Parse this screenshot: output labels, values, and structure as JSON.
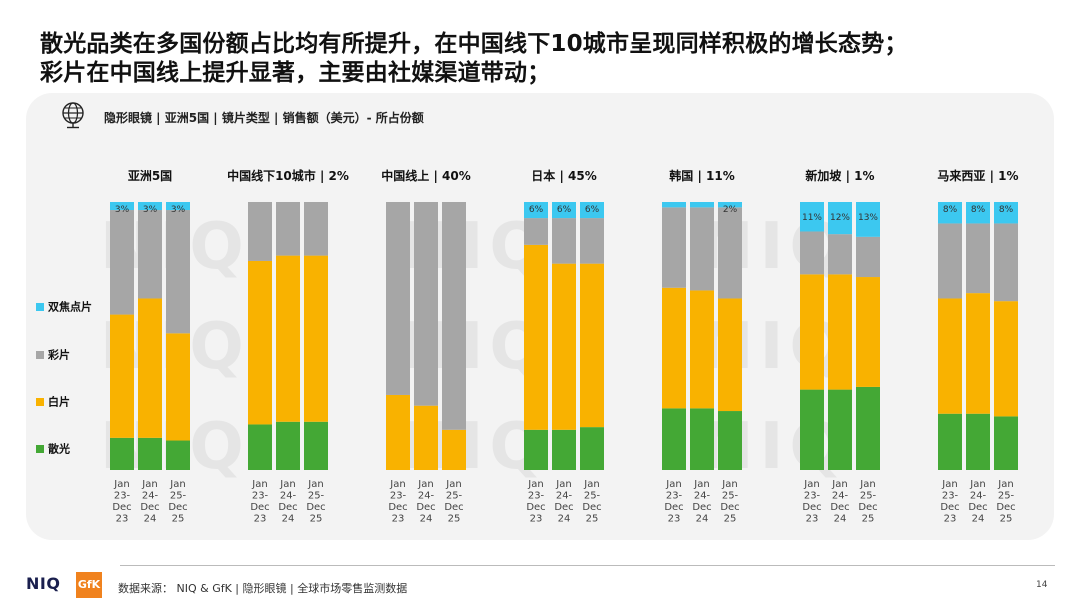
{
  "title_line1": "散光品类在多国份额占比均有所提升，在中国线下10城市呈现同样积极的增长态势；",
  "title_line2": "彩片在中国线上提升显著，主要由社媒渠道带动；",
  "subtitle": "隐形眼镜 | 亚洲5国 | 镜片类型 | 销售额（美元）- 所占份额",
  "icon": "globe-icon",
  "watermark": "NIQ",
  "colors": {
    "toric": "#44a835",
    "clear": "#f9b200",
    "color": "#a6a6a6",
    "bifocal": "#3cc8f0"
  },
  "legend": [
    {
      "key": "bifocal",
      "label": "双焦点片"
    },
    {
      "key": "color",
      "label": "彩片"
    },
    {
      "key": "clear",
      "label": "白片"
    },
    {
      "key": "toric",
      "label": "散光"
    }
  ],
  "chart_data": {
    "type": "bar",
    "stacked": true,
    "normalized": true,
    "periods": [
      [
        "Jan",
        "23-",
        "Dec",
        "23"
      ],
      [
        "Jan",
        "24-",
        "Dec",
        "24"
      ],
      [
        "Jan",
        "25-",
        "Dec",
        "25"
      ]
    ],
    "series_order": [
      "toric",
      "clear",
      "color",
      "bifocal"
    ],
    "groups": [
      {
        "name": "亚洲5国",
        "share": "",
        "bifocal_labels": [
          "3%",
          "3%",
          "3%"
        ],
        "bars": [
          {
            "toric": 12,
            "clear": 46,
            "color": 39,
            "bifocal": 3
          },
          {
            "toric": 12,
            "clear": 52,
            "color": 33,
            "bifocal": 3
          },
          {
            "toric": 11,
            "clear": 40,
            "color": 46,
            "bifocal": 3
          }
        ]
      },
      {
        "name": "中国线下10城市",
        "share": "2%",
        "bifocal_labels": [
          "",
          "",
          ""
        ],
        "bars": [
          {
            "toric": 17,
            "clear": 61,
            "color": 22,
            "bifocal": 0
          },
          {
            "toric": 18,
            "clear": 62,
            "color": 20,
            "bifocal": 0
          },
          {
            "toric": 18,
            "clear": 62,
            "color": 20,
            "bifocal": 0
          }
        ]
      },
      {
        "name": "中国线上",
        "share": "40%",
        "bifocal_labels": [
          "",
          "",
          ""
        ],
        "bars": [
          {
            "toric": 0,
            "clear": 28,
            "color": 72,
            "bifocal": 0
          },
          {
            "toric": 0,
            "clear": 24,
            "color": 76,
            "bifocal": 0
          },
          {
            "toric": 0,
            "clear": 15,
            "color": 85,
            "bifocal": 0
          }
        ]
      },
      {
        "name": "日本",
        "share": "45%",
        "bifocal_labels": [
          "6%",
          "6%",
          "6%"
        ],
        "bars": [
          {
            "toric": 15,
            "clear": 69,
            "color": 10,
            "bifocal": 6
          },
          {
            "toric": 15,
            "clear": 62,
            "color": 17,
            "bifocal": 6
          },
          {
            "toric": 16,
            "clear": 61,
            "color": 17,
            "bifocal": 6
          }
        ]
      },
      {
        "name": "韩国",
        "share": "11%",
        "bifocal_labels": [
          "",
          "",
          "2%"
        ],
        "bars": [
          {
            "toric": 23,
            "clear": 45,
            "color": 30,
            "bifocal": 2
          },
          {
            "toric": 23,
            "clear": 44,
            "color": 31,
            "bifocal": 2
          },
          {
            "toric": 22,
            "clear": 42,
            "color": 34,
            "bifocal": 2
          }
        ]
      },
      {
        "name": "新加坡",
        "share": "1%",
        "bifocal_labels": [
          "11%",
          "12%",
          "13%"
        ],
        "bars": [
          {
            "toric": 30,
            "clear": 43,
            "color": 16,
            "bifocal": 11
          },
          {
            "toric": 30,
            "clear": 43,
            "color": 15,
            "bifocal": 12
          },
          {
            "toric": 31,
            "clear": 41,
            "color": 15,
            "bifocal": 13
          }
        ]
      },
      {
        "name": "马来西亚",
        "share": "1%",
        "bifocal_labels": [
          "8%",
          "8%",
          "8%"
        ],
        "bars": [
          {
            "toric": 21,
            "clear": 43,
            "color": 28,
            "bifocal": 8
          },
          {
            "toric": 21,
            "clear": 45,
            "color": 26,
            "bifocal": 8
          },
          {
            "toric": 20,
            "clear": 43,
            "color": 29,
            "bifocal": 8
          }
        ]
      }
    ]
  },
  "footer": {
    "niq": "NIQ",
    "gfk": "GfK",
    "source": "数据来源： NIQ & GfK | 隐形眼镜 | 全球市场零售监测数据",
    "page": "14"
  }
}
